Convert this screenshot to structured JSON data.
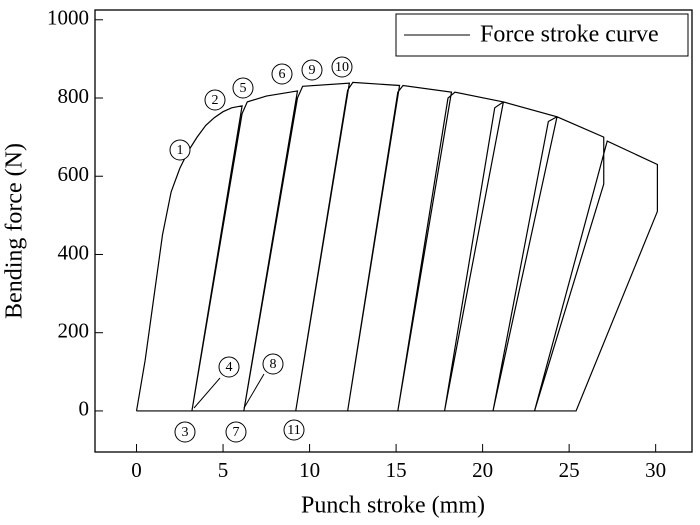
{
  "chart_data": {
    "type": "line",
    "x_label": "Punch  stroke (mm)",
    "y_label": "Bending force (N)",
    "xlim": [
      -2.4,
      32.1
    ],
    "ylim": [
      -105,
      1025
    ],
    "xticks": [
      0,
      5,
      10,
      15,
      20,
      25,
      30
    ],
    "yticks": [
      0,
      200,
      400,
      600,
      800,
      1000
    ],
    "legend": "upper right",
    "series": [
      {
        "name": "Force stroke curve",
        "color": "#000000",
        "x": [
          0,
          0.5,
          1.0,
          1.5,
          2.0,
          2.5,
          3.0,
          3.5,
          4.0,
          4.5,
          5.0,
          5.5,
          6.1,
          3.2,
          6.1,
          6.4,
          7.5,
          9.3,
          6.2,
          9.3,
          9.6,
          12.3,
          9.2,
          12.2,
          12.5,
          15.2,
          12.2,
          15.1,
          15.4,
          18.2,
          15.1,
          18.0,
          18.4,
          21.2,
          17.8,
          20.7,
          21.2,
          24.3,
          20.6,
          23.8,
          24.3,
          27.0,
          27.0,
          23.0,
          27.2,
          30.1,
          30.1,
          25.4,
          0
        ],
        "values": [
          0,
          130,
          290,
          450,
          560,
          620,
          665,
          700,
          730,
          750,
          765,
          775,
          780,
          0,
          760,
          790,
          805,
          818,
          0,
          800,
          830,
          838,
          0,
          820,
          840,
          832,
          0,
          815,
          832,
          815,
          0,
          800,
          815,
          790,
          0,
          775,
          790,
          752,
          0,
          740,
          752,
          700,
          580,
          0,
          690,
          630,
          510,
          0,
          0
        ]
      }
    ],
    "annotations": [
      "1",
      "2",
      "3",
      "4",
      "5",
      "6",
      "7",
      "8",
      "9",
      "10",
      "11"
    ]
  }
}
